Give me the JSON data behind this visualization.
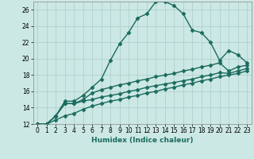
{
  "xlabel": "Humidex (Indice chaleur)",
  "background_color": "#cce8e4",
  "grid_color": "#aaccca",
  "line_color": "#1a6b5e",
  "xlim": [
    -0.5,
    23.5
  ],
  "ylim": [
    12,
    27
  ],
  "xticks": [
    0,
    1,
    2,
    3,
    4,
    5,
    6,
    7,
    8,
    9,
    10,
    11,
    12,
    13,
    14,
    15,
    16,
    17,
    18,
    19,
    20,
    21,
    22,
    23
  ],
  "yticks": [
    12,
    14,
    16,
    18,
    20,
    22,
    24,
    26
  ],
  "series": [
    {
      "x": [
        0,
        1,
        2,
        3,
        4,
        5,
        6,
        7,
        8,
        9,
        10,
        11,
        12,
        13,
        14,
        15,
        16,
        17,
        18,
        19,
        20,
        21,
        22,
        23
      ],
      "y": [
        12,
        12,
        13,
        14.8,
        14.8,
        15.5,
        16.5,
        17.5,
        19.8,
        21.8,
        23.2,
        25.0,
        25.5,
        27.0,
        27.0,
        26.5,
        25.5,
        23.5,
        23.2,
        22.0,
        19.8,
        21.0,
        20.5,
        19.5
      ]
    },
    {
      "x": [
        0,
        1,
        2,
        3,
        4,
        5,
        6,
        7,
        8,
        9,
        10,
        11,
        12,
        13,
        14,
        15,
        16,
        17,
        18,
        19,
        20,
        21,
        22,
        23
      ],
      "y": [
        12,
        12,
        13,
        14.5,
        14.5,
        15.0,
        15.8,
        16.2,
        16.5,
        16.8,
        17.0,
        17.3,
        17.5,
        17.8,
        18.0,
        18.2,
        18.5,
        18.7,
        19.0,
        19.2,
        19.5,
        18.5,
        19.0,
        19.2
      ]
    },
    {
      "x": [
        0,
        1,
        2,
        3,
        4,
        5,
        6,
        7,
        8,
        9,
        10,
        11,
        12,
        13,
        14,
        15,
        16,
        17,
        18,
        19,
        20,
        21,
        22,
        23
      ],
      "y": [
        12,
        12,
        13,
        14.5,
        14.5,
        14.8,
        15.0,
        15.3,
        15.5,
        15.7,
        16.0,
        16.2,
        16.5,
        16.7,
        16.9,
        17.1,
        17.3,
        17.5,
        17.8,
        18.0,
        18.3,
        18.2,
        18.5,
        18.8
      ]
    },
    {
      "x": [
        0,
        1,
        2,
        3,
        4,
        5,
        6,
        7,
        8,
        9,
        10,
        11,
        12,
        13,
        14,
        15,
        16,
        17,
        18,
        19,
        20,
        21,
        22,
        23
      ],
      "y": [
        12,
        12,
        12.5,
        13.0,
        13.3,
        13.8,
        14.2,
        14.5,
        14.8,
        15.0,
        15.3,
        15.5,
        15.8,
        16.0,
        16.3,
        16.5,
        16.8,
        17.0,
        17.3,
        17.5,
        17.8,
        18.0,
        18.2,
        18.5
      ]
    }
  ],
  "marker": "D",
  "markersize": 2.5,
  "linewidth": 1.0,
  "label_fontsize": 6.5,
  "tick_fontsize": 5.5
}
